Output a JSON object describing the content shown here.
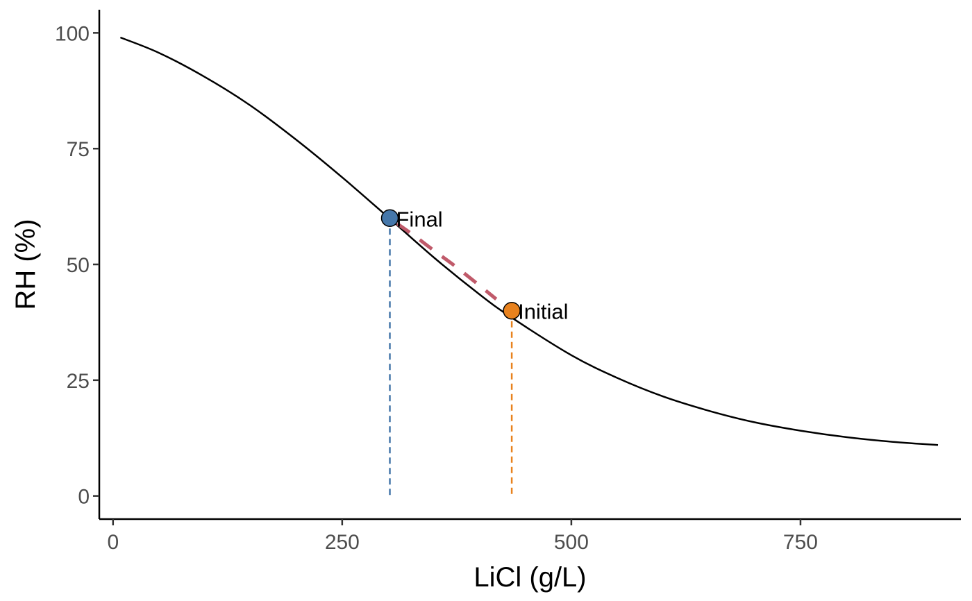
{
  "chart_data": {
    "type": "line",
    "title": "",
    "xlabel": "LiCl (g/L)",
    "ylabel": "RH (%)",
    "xlim": [
      -15,
      925
    ],
    "ylim": [
      -5,
      105
    ],
    "x_ticks": [
      0,
      250,
      500,
      750
    ],
    "y_ticks": [
      0,
      25,
      50,
      75,
      100
    ],
    "grid": false,
    "legend": "none",
    "series": [
      {
        "type": "line",
        "color": "#000000",
        "x": [
          8,
          50,
          100,
          150,
          200,
          250,
          300,
          350,
          400,
          435,
          500,
          550,
          600,
          650,
          700,
          750,
          800,
          850,
          900
        ],
        "y": [
          99,
          95.7,
          90.5,
          84.3,
          76.9,
          68.8,
          60.2,
          51.5,
          43.5,
          38.5,
          30.4,
          25.5,
          21.5,
          18.4,
          15.9,
          14.1,
          12.7,
          11.7,
          11.0
        ]
      }
    ],
    "points": [
      {
        "label": "Final",
        "x": 302,
        "y": 60,
        "color": "#4577aa"
      },
      {
        "label": "Initial",
        "x": 435,
        "y": 40,
        "color": "#e8821e"
      }
    ],
    "transition_segment": {
      "color": "#c05a6a",
      "x": [
        310,
        330,
        350,
        370,
        390,
        405,
        418
      ],
      "y": [
        58.8,
        56,
        53,
        50.1,
        47,
        44.6,
        42.5
      ]
    }
  }
}
